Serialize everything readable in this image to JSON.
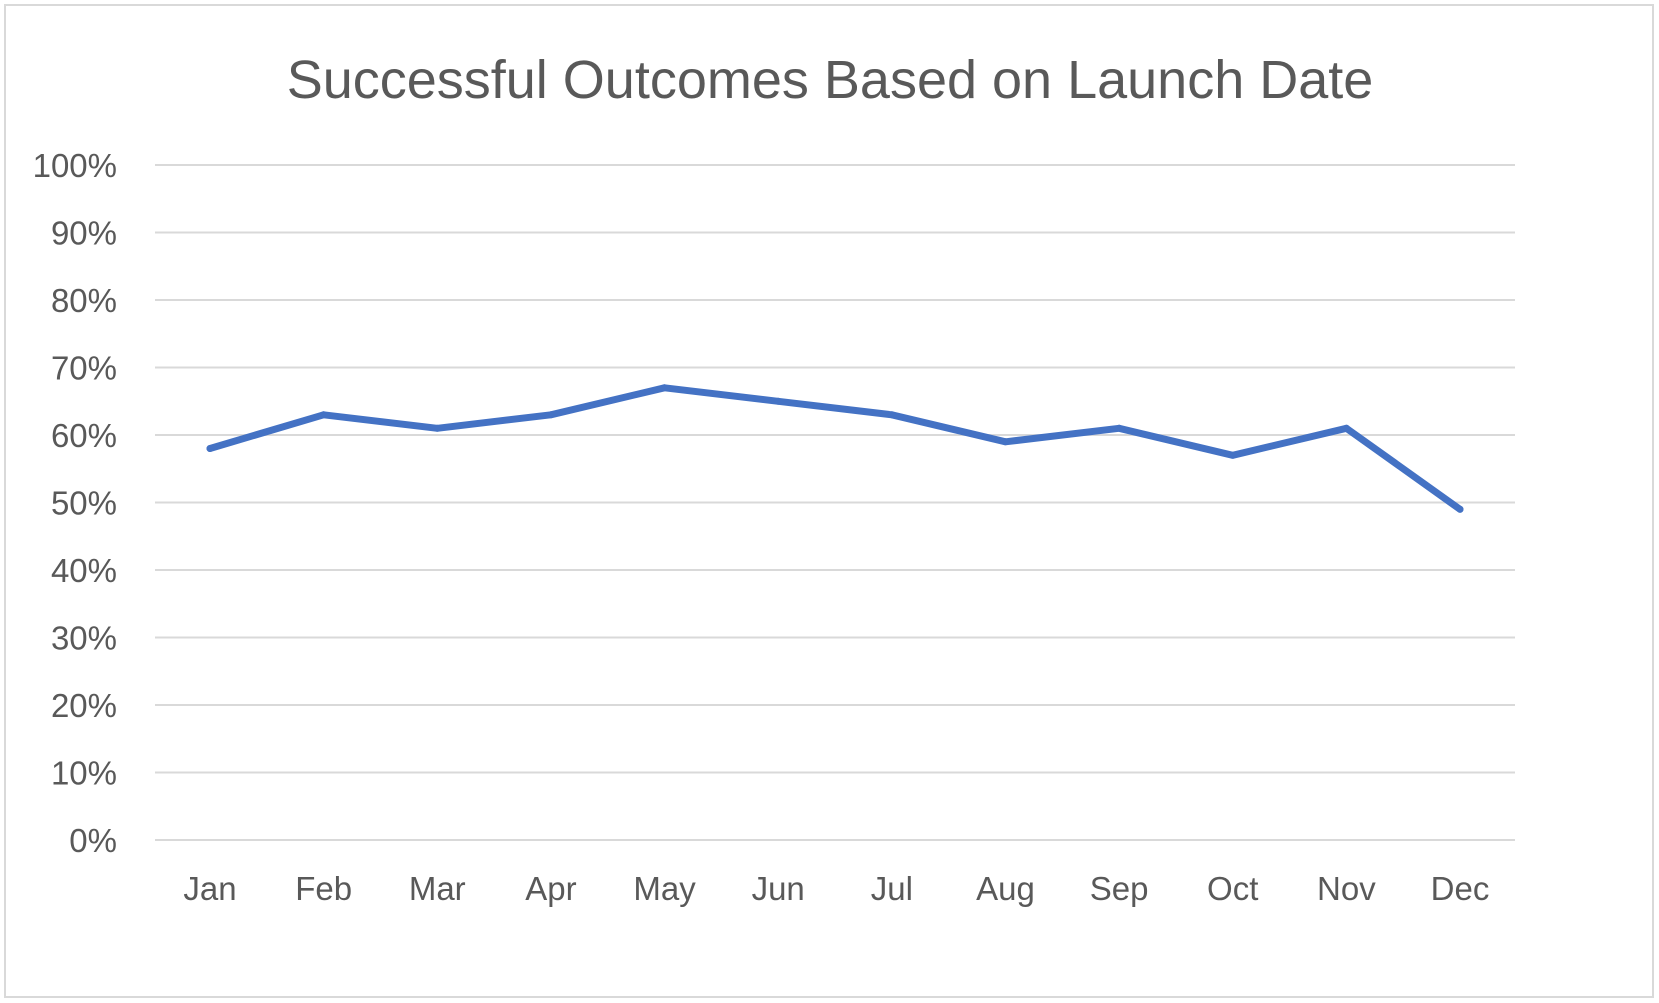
{
  "chart_data": {
    "type": "line",
    "title": "Successful Outcomes Based on Launch Date",
    "xlabel": "",
    "ylabel": "",
    "categories": [
      "Jan",
      "Feb",
      "Mar",
      "Apr",
      "May",
      "Jun",
      "Jul",
      "Aug",
      "Sep",
      "Oct",
      "Nov",
      "Dec"
    ],
    "series": [
      {
        "values": [
          0.58,
          0.63,
          0.61,
          0.63,
          0.67,
          0.65,
          0.63,
          0.59,
          0.61,
          0.57,
          0.61,
          0.49
        ],
        "color": "#4472C4"
      }
    ],
    "y_ticks": [
      "0%",
      "10%",
      "20%",
      "30%",
      "40%",
      "50%",
      "60%",
      "70%",
      "80%",
      "90%",
      "100%"
    ],
    "ylim": [
      0,
      1
    ],
    "grid": true,
    "legend": "none",
    "colors": {
      "gridline": "#d9d9d9",
      "text": "#595959",
      "border": "#d9d9d9"
    }
  }
}
